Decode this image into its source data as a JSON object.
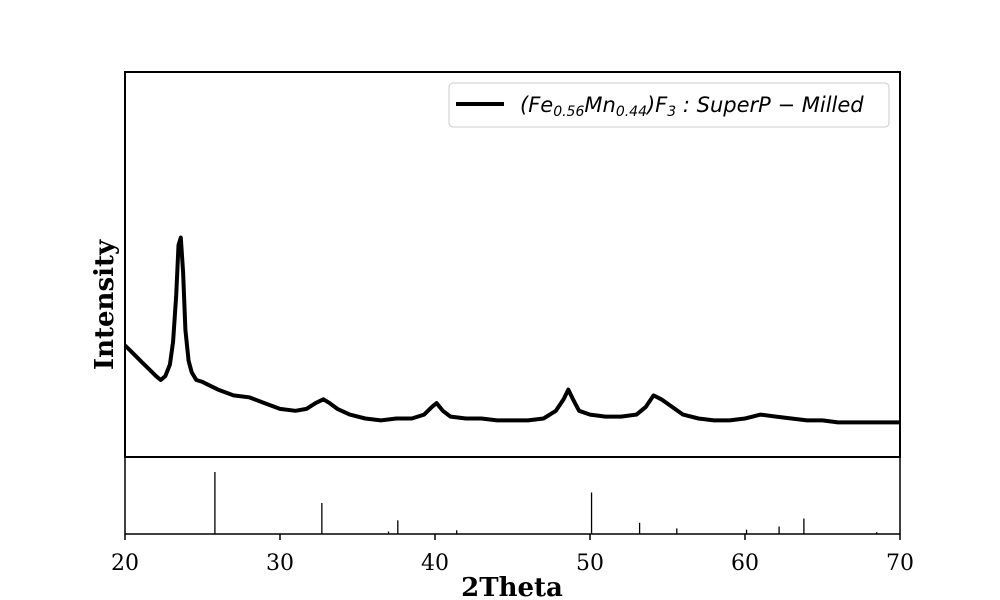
{
  "chart_data": {
    "type": "line",
    "xlabel": "2Theta",
    "ylabel": "Intensity",
    "xlim": [
      20,
      70
    ],
    "xticks": [
      "20",
      "30",
      "40",
      "50",
      "60",
      "70"
    ],
    "ylim": [
      0,
      100
    ],
    "grid": false,
    "legend_position": "top-right",
    "legend": {
      "open": "(",
      "el1": "Fe",
      "sub1": "0.56",
      "el2": "Mn",
      "sub2": "0.44",
      "close": ")F",
      "sub3": "3",
      "rest": " : SuperP − Milled"
    },
    "series": [
      {
        "name": "(Fe0.56Mn0.44)F3 : SuperP − Milled",
        "color": "#000000",
        "x": [
          20,
          20.5,
          21,
          21.5,
          22,
          22.3,
          22.6,
          22.9,
          23.1,
          23.3,
          23.45,
          23.6,
          23.75,
          23.9,
          24.1,
          24.3,
          24.6,
          25,
          25.5,
          26,
          27,
          28,
          29,
          30,
          31,
          31.7,
          32.3,
          32.8,
          33.2,
          33.7,
          34.5,
          35.5,
          36.5,
          37.5,
          38.5,
          39.3,
          39.8,
          40.1,
          40.5,
          41,
          42,
          43,
          44,
          45,
          46,
          47,
          47.8,
          48.3,
          48.6,
          48.9,
          49.3,
          50,
          51,
          52,
          53,
          53.6,
          54.1,
          54.6,
          55.3,
          56,
          57,
          58,
          59,
          60,
          60.5,
          61,
          62,
          63,
          64,
          65,
          66,
          67,
          68,
          69,
          70
        ],
        "y": [
          29,
          27,
          25,
          23,
          21,
          20,
          21,
          24,
          30,
          42,
          55,
          57,
          48,
          33,
          25,
          22,
          20,
          19.5,
          18.5,
          17.5,
          16,
          15.5,
          14,
          12.5,
          12,
          12.5,
          14,
          15,
          14,
          12.5,
          11,
          10,
          9.5,
          10,
          10,
          11,
          13,
          14,
          12,
          10.5,
          10,
          10,
          9.5,
          9.5,
          9.5,
          10,
          12,
          15,
          17.5,
          15,
          12,
          11,
          10.5,
          10.5,
          11,
          13,
          16,
          15,
          13,
          11,
          10,
          9.5,
          9.5,
          10,
          10.5,
          11,
          10.5,
          10,
          9.5,
          9.5,
          9,
          9,
          9,
          9,
          9
        ]
      }
    ],
    "reference_peaks": {
      "x": [
        25.8,
        32.7,
        37.0,
        37.6,
        41.4,
        50.1,
        53.2,
        55.6,
        60.1,
        62.2,
        63.8,
        68.5
      ],
      "intensity": [
        100,
        50,
        4,
        22,
        6,
        67,
        18,
        9,
        7,
        12,
        25,
        3
      ]
    }
  }
}
